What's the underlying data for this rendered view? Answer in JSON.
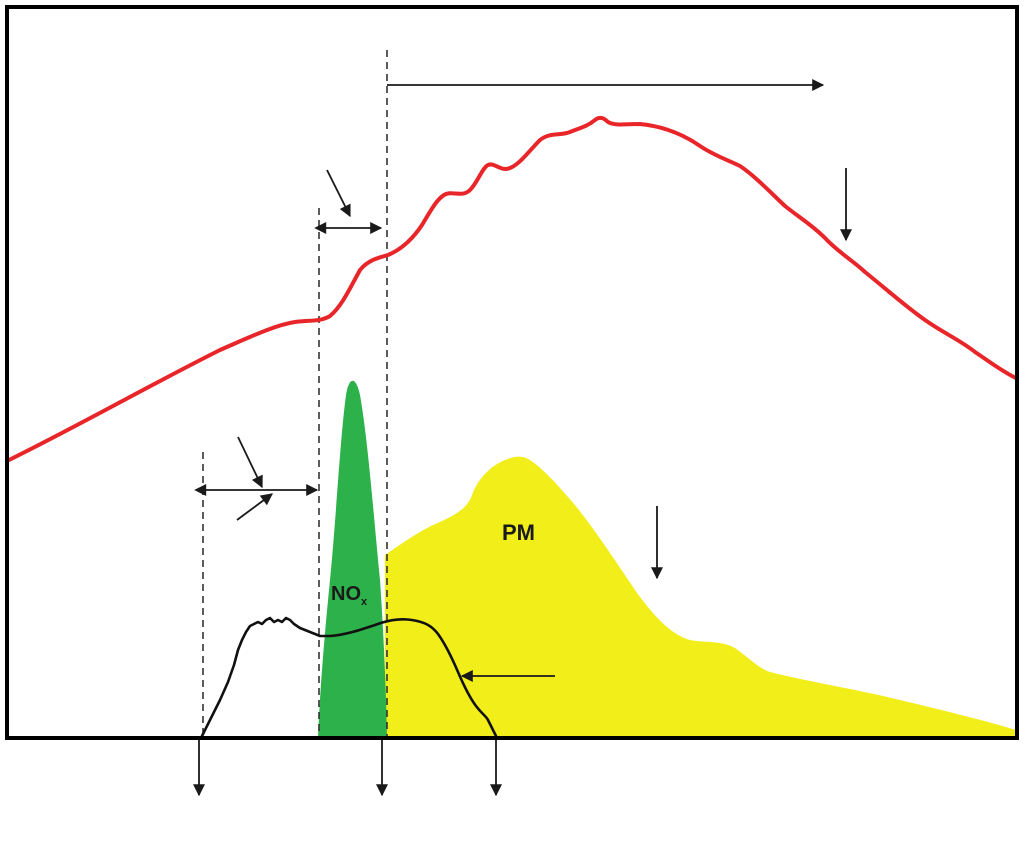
{
  "labels": {
    "pm": "PM",
    "nox_main": "NO",
    "nox_sub": "x"
  },
  "colors": {
    "frame": "#000000",
    "temperature_curve": "#e8262a",
    "nox_fill": "#2db14a",
    "pm_fill": "#f2ee1a",
    "pressure_curve": "#111111",
    "arrows": "#1a1a1a",
    "guide_lines": "#333333"
  }
}
